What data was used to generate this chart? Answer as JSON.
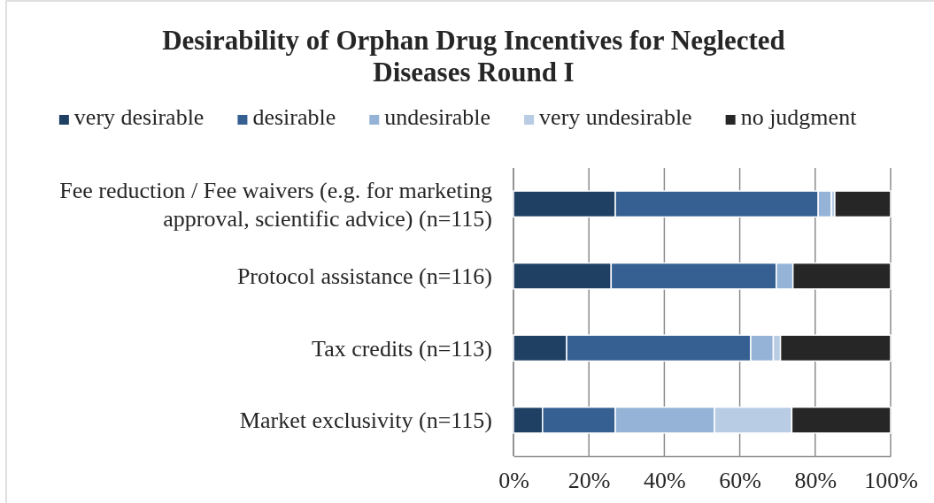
{
  "chart_data": {
    "type": "bar",
    "orientation": "horizontal",
    "stacked": true,
    "title": "Desirability of Orphan Drug Incentives for Neglected Diseases Round I",
    "categories": [
      "Fee reduction / Fee waivers (e.g. for marketing approval, scientific advice) (n=115)",
      "Protocol assistance (n=116)",
      "Tax credits (n=113)",
      "Market exclusivity  (n=115)"
    ],
    "series": [
      {
        "name": "very desirable",
        "color": "#1f3f63",
        "values": [
          27,
          25.9,
          14.1,
          7.7
        ]
      },
      {
        "name": "desirable",
        "color": "#366092",
        "values": [
          53.8,
          43.8,
          48.8,
          19.3
        ]
      },
      {
        "name": "undesirable",
        "color": "#95b3d7",
        "values": [
          3.5,
          4.4,
          6.0,
          26.3
        ]
      },
      {
        "name": "very undesirable",
        "color": "#b8cce4",
        "values": [
          0.9,
          0,
          1.9,
          20.5
        ]
      },
      {
        "name": "no judgment",
        "color": "#262626",
        "values": [
          14.8,
          25.9,
          29.2,
          26.2
        ]
      }
    ],
    "xlim": [
      0,
      100
    ],
    "xticks": [
      {
        "value": 0,
        "label": "0%"
      },
      {
        "value": 20,
        "label": "20%"
      },
      {
        "value": 40,
        "label": "40%"
      },
      {
        "value": 60,
        "label": "60%"
      },
      {
        "value": 80,
        "label": "80%"
      },
      {
        "value": 100,
        "label": "100%"
      }
    ],
    "grid": "x",
    "legend": "top"
  }
}
